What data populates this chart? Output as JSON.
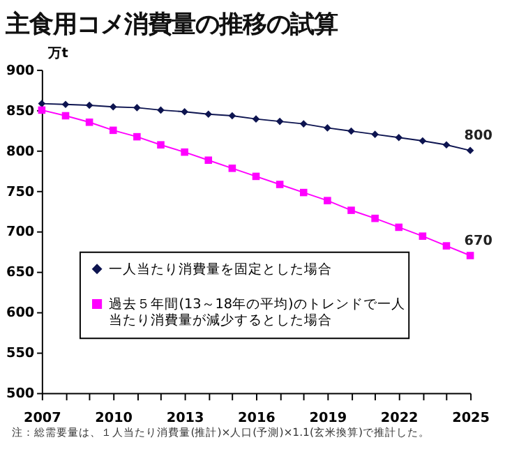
{
  "chart_data": {
    "type": "line",
    "title": "主食用コメ消費量の推移の試算",
    "ylabel": "万t",
    "x": [
      2007,
      2008,
      2009,
      2010,
      2011,
      2012,
      2013,
      2014,
      2015,
      2016,
      2017,
      2018,
      2019,
      2020,
      2021,
      2022,
      2023,
      2024,
      2025
    ],
    "series": [
      {
        "name": "一人当たり消費量を固定とした場合",
        "color": "#0d1450",
        "marker": "diamond",
        "values": [
          858,
          857,
          856,
          854,
          853,
          850,
          848,
          845,
          843,
          839,
          836,
          833,
          828,
          824,
          820,
          816,
          812,
          807,
          800
        ],
        "value_labels": [
          null,
          null,
          null,
          null,
          null,
          null,
          null,
          null,
          null,
          null,
          null,
          null,
          null,
          null,
          null,
          null,
          null,
          null,
          "800"
        ]
      },
      {
        "name": "過去５年間(13～18年の平均)のトレンドで一人当たり消費量が減少するとした場合",
        "color": "#ff00ff",
        "marker": "square",
        "values": [
          850,
          843,
          835,
          825,
          817,
          807,
          798,
          788,
          778,
          768,
          758,
          748,
          738,
          726,
          716,
          705,
          694,
          682,
          670
        ],
        "value_labels": [
          null,
          null,
          null,
          null,
          null,
          null,
          null,
          null,
          null,
          null,
          null,
          null,
          null,
          null,
          null,
          null,
          null,
          null,
          "670"
        ]
      }
    ],
    "xlim": [
      2007,
      2025
    ],
    "xticks": [
      2007,
      {
        "value": 2008,
        "label": null
      },
      {
        "value": 2009,
        "label": null
      },
      2010,
      {
        "value": 2011,
        "label": null
      },
      {
        "value": 2012,
        "label": null
      },
      2013,
      {
        "value": 2014,
        "label": null
      },
      {
        "value": 2015,
        "label": null
      },
      2016,
      {
        "value": 2017,
        "label": null
      },
      {
        "value": 2018,
        "label": null
      },
      2019,
      {
        "value": 2020,
        "label": null
      },
      {
        "value": 2021,
        "label": null
      },
      2022,
      {
        "value": 2023,
        "label": null
      },
      {
        "value": 2024,
        "label": null
      },
      2025
    ],
    "ylim": [
      500,
      900
    ],
    "yticks": [
      500,
      550,
      600,
      650,
      700,
      750,
      800,
      850,
      900
    ],
    "grid": false,
    "legend": "left",
    "line_style": "solid",
    "annotations": [
      "注：総需要量は、１人当たり消費量(推計)×人口(予測)×1.1(玄米換算)で推計した。"
    ]
  }
}
